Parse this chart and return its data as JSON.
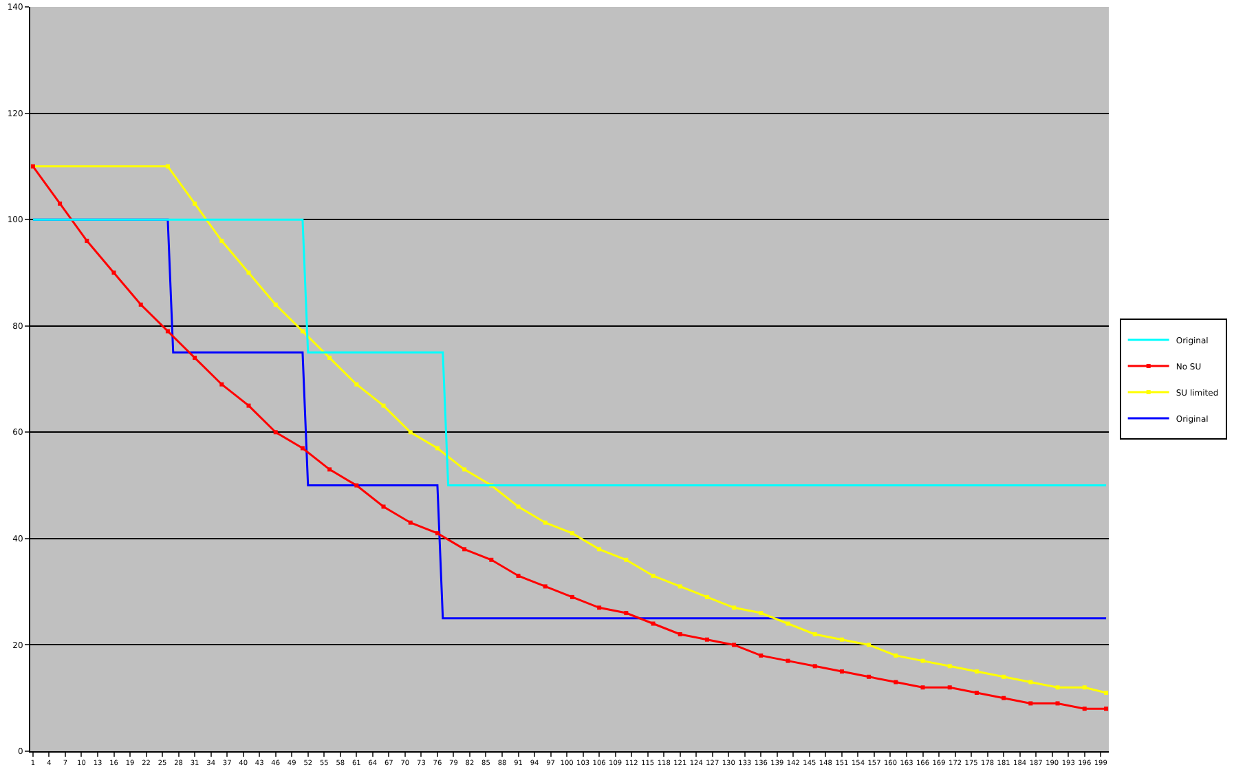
{
  "chart_data": {
    "type": "line",
    "xlim": [
      0.5,
      200.5
    ],
    "xticks": [
      1,
      4,
      7,
      10,
      13,
      16,
      19,
      22,
      25,
      28,
      31,
      34,
      37,
      40,
      43,
      46,
      49,
      52,
      55,
      58,
      61,
      64,
      67,
      70,
      73,
      76,
      79,
      82,
      85,
      88,
      91,
      94,
      97,
      100,
      103,
      106,
      109,
      112,
      115,
      118,
      121,
      124,
      127,
      130,
      133,
      136,
      139,
      142,
      145,
      148,
      151,
      154,
      157,
      160,
      163,
      166,
      169,
      172,
      175,
      178,
      181,
      184,
      187,
      190,
      193,
      196,
      199
    ],
    "ylim": [
      0,
      140
    ],
    "yticks": [
      0,
      20,
      40,
      60,
      80,
      100,
      120,
      140
    ],
    "grid": "y",
    "legend": "right",
    "series": [
      {
        "name": "Original",
        "color": "#00ffff",
        "marker": "none",
        "x": [
          1,
          51,
          52,
          77,
          78,
          200
        ],
        "values": [
          100,
          100,
          75,
          75,
          50,
          50
        ]
      },
      {
        "name": "No SU",
        "color": "#ff0000",
        "marker": "square",
        "x": [
          1,
          6,
          11,
          16,
          21,
          26,
          31,
          36,
          41,
          46,
          51,
          56,
          61,
          66,
          71,
          76,
          81,
          86,
          91,
          96,
          101,
          106,
          111,
          116,
          121,
          126,
          131,
          136,
          141,
          146,
          151,
          156,
          161,
          166,
          171,
          176,
          181,
          186,
          191,
          196,
          200
        ],
        "values": [
          110,
          103,
          96,
          90,
          84,
          79,
          74,
          69,
          65,
          60,
          57,
          53,
          50,
          46,
          43,
          41,
          38,
          36,
          33,
          31,
          29,
          27,
          26,
          24,
          22,
          21,
          20,
          18,
          17,
          16,
          15,
          14,
          13,
          12,
          12,
          11,
          10,
          9,
          9,
          8,
          8
        ]
      },
      {
        "name": "SU limited",
        "color": "#ffff00",
        "marker": "square",
        "x": [
          1,
          26,
          31,
          36,
          41,
          46,
          51,
          56,
          61,
          66,
          71,
          76,
          81,
          86,
          91,
          96,
          101,
          106,
          111,
          116,
          121,
          126,
          131,
          136,
          141,
          146,
          151,
          156,
          161,
          166,
          171,
          176,
          181,
          186,
          191,
          196,
          200
        ],
        "values": [
          110,
          110,
          103,
          96,
          90,
          84,
          79,
          74,
          69,
          65,
          60,
          57,
          53,
          50,
          46,
          43,
          41,
          38,
          36,
          33,
          31,
          29,
          27,
          26,
          24,
          22,
          21,
          20,
          18,
          17,
          16,
          15,
          14,
          13,
          12,
          12,
          11
        ]
      },
      {
        "name": "Original",
        "color": "#0000ff",
        "marker": "none",
        "x": [
          1,
          26,
          27,
          51,
          52,
          76,
          77,
          200
        ],
        "values": [
          100,
          100,
          75,
          75,
          50,
          50,
          25,
          25
        ]
      }
    ]
  }
}
